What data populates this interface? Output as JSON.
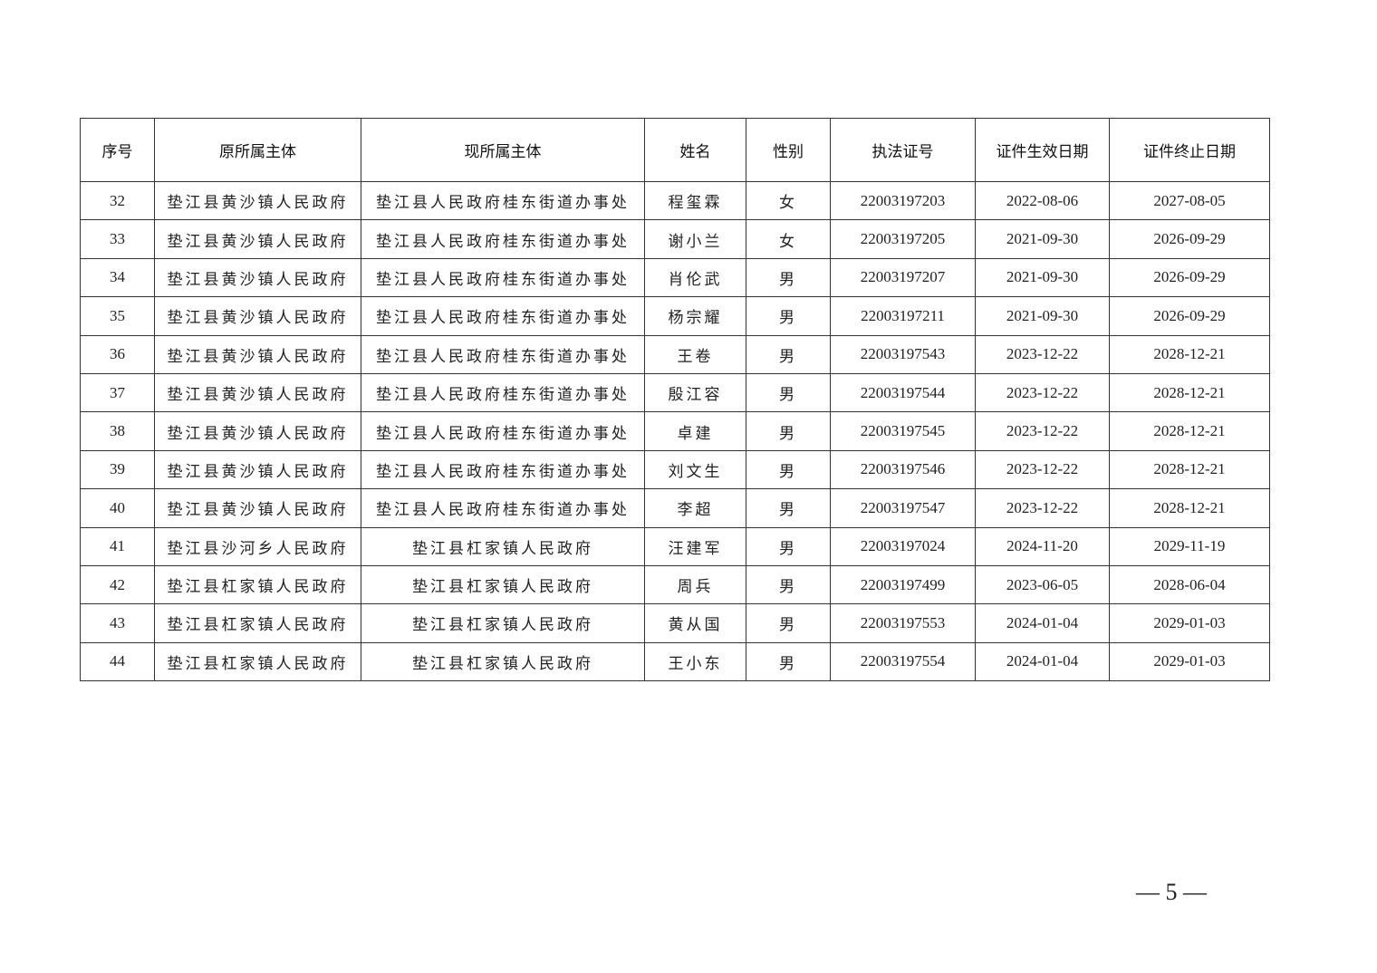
{
  "table": {
    "headers": [
      "序号",
      "原所属主体",
      "现所属主体",
      "姓名",
      "性别",
      "执法证号",
      "证件生效日期",
      "证件终止日期"
    ],
    "rows": [
      [
        "32",
        "垫江县黄沙镇人民政府",
        "垫江县人民政府桂东街道办事处",
        "程玺霖",
        "女",
        "22003197203",
        "2022-08-06",
        "2027-08-05"
      ],
      [
        "33",
        "垫江县黄沙镇人民政府",
        "垫江县人民政府桂东街道办事处",
        "谢小兰",
        "女",
        "22003197205",
        "2021-09-30",
        "2026-09-29"
      ],
      [
        "34",
        "垫江县黄沙镇人民政府",
        "垫江县人民政府桂东街道办事处",
        "肖伦武",
        "男",
        "22003197207",
        "2021-09-30",
        "2026-09-29"
      ],
      [
        "35",
        "垫江县黄沙镇人民政府",
        "垫江县人民政府桂东街道办事处",
        "杨宗耀",
        "男",
        "22003197211",
        "2021-09-30",
        "2026-09-29"
      ],
      [
        "36",
        "垫江县黄沙镇人民政府",
        "垫江县人民政府桂东街道办事处",
        "王卷",
        "男",
        "22003197543",
        "2023-12-22",
        "2028-12-21"
      ],
      [
        "37",
        "垫江县黄沙镇人民政府",
        "垫江县人民政府桂东街道办事处",
        "殷江容",
        "男",
        "22003197544",
        "2023-12-22",
        "2028-12-21"
      ],
      [
        "38",
        "垫江县黄沙镇人民政府",
        "垫江县人民政府桂东街道办事处",
        "卓建",
        "男",
        "22003197545",
        "2023-12-22",
        "2028-12-21"
      ],
      [
        "39",
        "垫江县黄沙镇人民政府",
        "垫江县人民政府桂东街道办事处",
        "刘文生",
        "男",
        "22003197546",
        "2023-12-22",
        "2028-12-21"
      ],
      [
        "40",
        "垫江县黄沙镇人民政府",
        "垫江县人民政府桂东街道办事处",
        "李超",
        "男",
        "22003197547",
        "2023-12-22",
        "2028-12-21"
      ],
      [
        "41",
        "垫江县沙河乡人民政府",
        "垫江县杠家镇人民政府",
        "汪建军",
        "男",
        "22003197024",
        "2024-11-20",
        "2029-11-19"
      ],
      [
        "42",
        "垫江县杠家镇人民政府",
        "垫江县杠家镇人民政府",
        "周兵",
        "男",
        "22003197499",
        "2023-06-05",
        "2028-06-04"
      ],
      [
        "43",
        "垫江县杠家镇人民政府",
        "垫江县杠家镇人民政府",
        "黄从国",
        "男",
        "22003197553",
        "2024-01-04",
        "2029-01-03"
      ],
      [
        "44",
        "垫江县杠家镇人民政府",
        "垫江县杠家镇人民政府",
        "王小东",
        "男",
        "22003197554",
        "2024-01-04",
        "2029-01-03"
      ]
    ]
  },
  "page_number": "— 5 —"
}
